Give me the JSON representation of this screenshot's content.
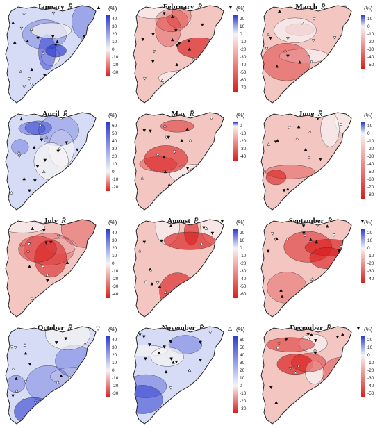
{
  "unit_label": "(%)",
  "rbar_label": "R̄",
  "months": [
    {
      "name": "January",
      "scheme": "blue",
      "ticks": [
        "40",
        "30",
        "20",
        "10",
        "0",
        "-10",
        "-20",
        "-30"
      ],
      "trend": "up"
    },
    {
      "name": "February",
      "scheme": "red",
      "ticks": [
        "20",
        "10",
        "0",
        "-10",
        "-20",
        "-30",
        "-40",
        "-50",
        "-60",
        "-70"
      ],
      "trend": "down"
    },
    {
      "name": "March",
      "scheme": "red",
      "ticks": [
        "10",
        "0",
        "-10",
        "-20",
        "-30",
        "-40",
        "-50"
      ],
      "trend": "down-open"
    },
    {
      "name": "April",
      "scheme": "blue",
      "ticks": [
        "60",
        "50",
        "40",
        "30",
        "20",
        "10",
        "0",
        "-10",
        "-20"
      ],
      "trend": "up"
    },
    {
      "name": "May",
      "scheme": "red",
      "ticks": [
        "0",
        "-10",
        "-20",
        "-30",
        "-40"
      ],
      "trend": "down"
    },
    {
      "name": "June",
      "scheme": "red",
      "ticks": [
        "10",
        "0",
        "-10",
        "-20",
        "-30",
        "-40",
        "-50",
        "-60",
        "-70",
        "-80"
      ],
      "trend": "down"
    },
    {
      "name": "July",
      "scheme": "red",
      "ticks": [
        "40",
        "30",
        "20",
        "10",
        "0",
        "-10",
        "-20",
        "-30",
        "-40"
      ],
      "trend": "down"
    },
    {
      "name": "August",
      "scheme": "red",
      "ticks": [
        "20",
        "10",
        "0",
        "-10",
        "-20",
        "-30",
        "-40",
        "-50",
        "-60"
      ],
      "trend": "down"
    },
    {
      "name": "September",
      "scheme": "red",
      "ticks": [
        "20",
        "10",
        "0",
        "-10",
        "-20",
        "-30",
        "-40"
      ],
      "trend": "down"
    },
    {
      "name": "October",
      "scheme": "blue",
      "ticks": [
        "40",
        "30",
        "20",
        "10",
        "0",
        "-10",
        "-20",
        "-30"
      ],
      "trend": "down-open"
    },
    {
      "name": "November",
      "scheme": "blue",
      "ticks": [
        "60",
        "50",
        "40",
        "30",
        "20",
        "10",
        "0",
        "-10",
        "-20",
        "-30"
      ],
      "trend": "up-open"
    },
    {
      "name": "December",
      "scheme": "red",
      "ticks": [
        "20",
        "10",
        "0",
        "-10",
        "-20",
        "-30",
        "-40",
        "-50"
      ],
      "trend": "down"
    }
  ],
  "colors": {
    "blue_strong": "#2e3ccf",
    "blue_light": "#d6dcf6",
    "white": "#f7f3f3",
    "red_light": "#f4c6c2",
    "red_strong": "#d81f1f"
  }
}
